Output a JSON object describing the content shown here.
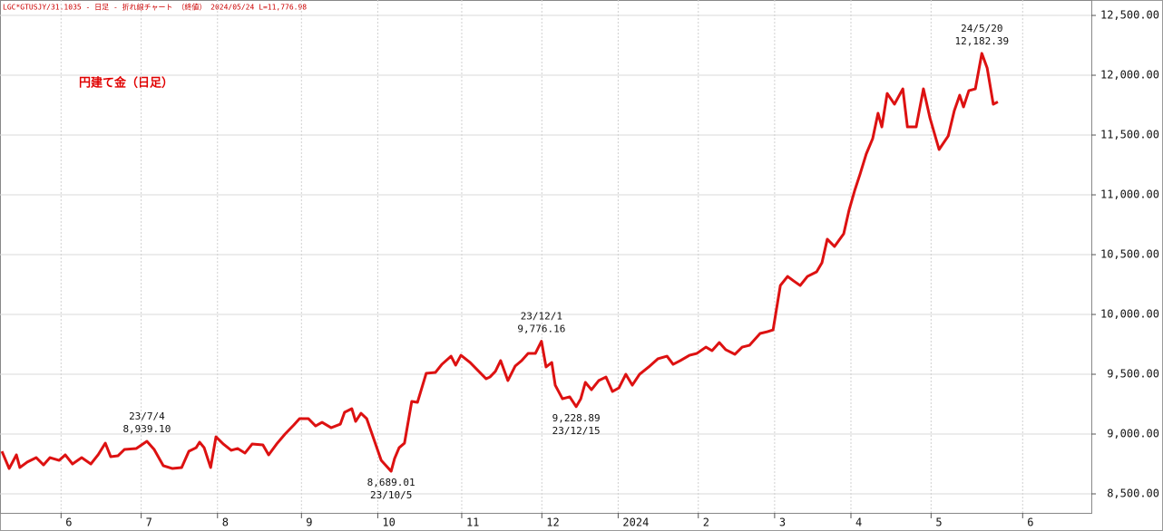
{
  "chart_data": {
    "type": "line",
    "header": "LGC*GTUSJY/31.1035 - 日足 - 折れ線チャート （終値） 2024/05/24 L=11,776.98",
    "title": "円建て金（日足）",
    "color": "#dd1111",
    "xlim": [
      0,
      286
    ],
    "xticks": [
      {
        "value": 16,
        "label": "6"
      },
      {
        "value": 37,
        "label": "7"
      },
      {
        "value": 57,
        "label": "8"
      },
      {
        "value": 79,
        "label": "9"
      },
      {
        "value": 99,
        "label": "10"
      },
      {
        "value": 121,
        "label": "11"
      },
      {
        "value": 142,
        "label": "12"
      },
      {
        "value": 162,
        "label": "2024"
      },
      {
        "value": 183,
        "label": "2"
      },
      {
        "value": 203,
        "label": "3"
      },
      {
        "value": 223,
        "label": "4"
      },
      {
        "value": 244,
        "label": "5"
      },
      {
        "value": 268,
        "label": "6"
      }
    ],
    "ylim": [
      8341,
      12629
    ],
    "yticks": [
      {
        "value": 8500,
        "label": "8,500.00"
      },
      {
        "value": 9000,
        "label": "9,000.00"
      },
      {
        "value": 9500,
        "label": "9,500.00"
      },
      {
        "value": 10000,
        "label": "10,000.00"
      },
      {
        "value": 10500,
        "label": "10,500.00"
      },
      {
        "value": 11000,
        "label": "11,000.00"
      },
      {
        "value": 11500,
        "label": "11,500.00"
      },
      {
        "value": 12000,
        "label": "12,000.00"
      },
      {
        "value": 12500,
        "label": "12,500.00"
      }
    ],
    "grid": true,
    "x": [
      0.5,
      2.4,
      4.3,
      5.2,
      7.1,
      9.5,
      11.4,
      13.1,
      15.5,
      17.1,
      19,
      21.4,
      23.8,
      25.7,
      27.6,
      29,
      30.9,
      32.6,
      35.7,
      38.5,
      40.4,
      42.8,
      45.2,
      47.6,
      49.5,
      51.4,
      52.3,
      53.5,
      55.2,
      56.6,
      58.5,
      60.6,
      62.3,
      64.2,
      66.1,
      68.9,
      70.4,
      72.5,
      74.7,
      77,
      78.5,
      80.8,
      82.7,
      84.4,
      86.8,
      89.2,
      90.3,
      92.2,
      93.2,
      94.6,
      96.1,
      98,
      99.9,
      102.5,
      103.4,
      104.6,
      106,
      107.9,
      109.4,
      111.7,
      114.1,
      115.8,
      118.2,
      119.4,
      120.8,
      123.2,
      125.5,
      127.4,
      128.4,
      129.8,
      131.2,
      133.1,
      135,
      136.7,
      138.4,
      140.3,
      141.9,
      143.1,
      144.6,
      145.5,
      147.4,
      149.3,
      151,
      152.2,
      153.4,
      155,
      156.9,
      158.8,
      160.5,
      162.2,
      164,
      165.7,
      167.6,
      170,
      172.4,
      174.8,
      176.4,
      178.3,
      180.7,
      182.6,
      185,
      186.6,
      188.5,
      190.2,
      192.6,
      194.5,
      196.4,
      199.2,
      201.1,
      202.6,
      204.5,
      206.4,
      208,
      209.7,
      211.6,
      214,
      215.4,
      216.8,
      218.7,
      221.1,
      222.5,
      224,
      225.4,
      227,
      228.7,
      230.1,
      231.1,
      232.5,
      234.4,
      236.6,
      237.8,
      240.1,
      242,
      243.7,
      246.1,
      248.5,
      250.1,
      251.5,
      252.5,
      253.9,
      255.6,
      257.3,
      258.7,
      260.3,
      261.5
    ],
    "values": [
      8856,
      8712,
      8826,
      8720,
      8765,
      8803,
      8742,
      8803,
      8780,
      8826,
      8750,
      8803,
      8750,
      8826,
      8924,
      8811,
      8818,
      8871,
      8879,
      8939.1,
      8871,
      8735,
      8712,
      8720,
      8856,
      8886,
      8932,
      8886,
      8720,
      8977,
      8917,
      8864,
      8879,
      8841,
      8917,
      8909,
      8826,
      8917,
      9000,
      9076,
      9129,
      9129,
      9068,
      9098,
      9053,
      9083,
      9182,
      9212,
      9106,
      9174,
      9129,
      8955,
      8780,
      8689.01,
      8795,
      8886,
      8924,
      9273,
      9265,
      9508,
      9515,
      9583,
      9651,
      9576,
      9659,
      9598,
      9523,
      9462,
      9477,
      9523,
      9614,
      9447,
      9568,
      9614,
      9674,
      9674,
      9776.16,
      9561,
      9598,
      9409,
      9295,
      9311,
      9228.89,
      9295,
      9432,
      9371,
      9447,
      9477,
      9356,
      9386,
      9500,
      9409,
      9500,
      9561,
      9629,
      9651,
      9583,
      9614,
      9659,
      9674,
      9727,
      9697,
      9765,
      9705,
      9667,
      9727,
      9742,
      9841,
      9856,
      9871,
      10242,
      10318,
      10280,
      10242,
      10318,
      10356,
      10432,
      10629,
      10568,
      10674,
      10871,
      11038,
      11174,
      11341,
      11470,
      11682,
      11568,
      11848,
      11758,
      11886,
      11568,
      11568,
      11886,
      11644,
      11379,
      11492,
      11705,
      11833,
      11735,
      11871,
      11886,
      12182.39,
      12061,
      11758,
      11776.98
    ],
    "annotations": [
      {
        "date": "23/7/4",
        "value": 8939.1,
        "label": "8,939.10",
        "x": 38.5,
        "position": "above"
      },
      {
        "date": "23/10/5",
        "value": 8689.01,
        "label": "8,689.01",
        "x": 102.5,
        "position": "below"
      },
      {
        "date": "23/12/1",
        "value": 9776.16,
        "label": "9,776.16",
        "x": 141.9,
        "position": "above"
      },
      {
        "date": "23/12/15",
        "value": 9228.89,
        "label": "9,228.89",
        "x": 151,
        "position": "below"
      },
      {
        "date": "24/5/20",
        "value": 12182.39,
        "label": "12,182.39",
        "x": 257.3,
        "position": "above"
      }
    ]
  }
}
